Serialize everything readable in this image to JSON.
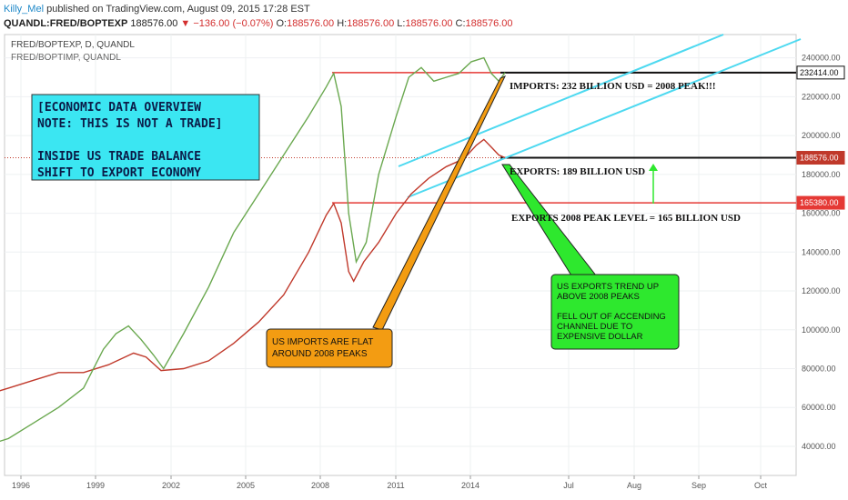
{
  "header": {
    "author": "Killy_Mel",
    "published": "published on TradingView.com, August 09, 2015 17:28 EST",
    "symbol": "QUANDL:FRED/BOPTEXP",
    "price": "188576.00",
    "change_arrow": "▼",
    "change": "−136.00 (−0.07%)",
    "o_label": "O:",
    "o_value": "188576.00",
    "h_label": "H:",
    "h_value": "188576.00",
    "l_label": "L:",
    "l_value": "188576.00",
    "c_label": "C:",
    "c_value": "188576.00"
  },
  "chart_data": {
    "type": "line",
    "legend_texts": [
      "FRED/BOPTEXP, D, QUANDL",
      "FRED/BOPTIMP, QUANDL"
    ],
    "y_ticks": [
      40000,
      60000,
      80000,
      100000,
      120000,
      140000,
      160000,
      180000,
      200000,
      220000,
      240000
    ],
    "y_tick_labels": [
      "40000.00",
      "60000.00",
      "80000.00",
      "100000.00",
      "120000.00",
      "140000.00",
      "160000.00",
      "180000.00",
      "200000.00",
      "220000.00",
      "240000.00"
    ],
    "ylim": [
      25000,
      252000
    ],
    "x_tick_labels": [
      "1996",
      "1999",
      "2002",
      "2005",
      "2008",
      "2011",
      "2014",
      "Jul",
      "Aug",
      "Sep",
      "Oct"
    ],
    "grid": true,
    "series": [
      {
        "color": "#c0392b",
        "points": [
          [
            1994.5,
            66000
          ],
          [
            1995.5,
            70000
          ],
          [
            1996.5,
            74000
          ],
          [
            1997.5,
            78000
          ],
          [
            1998.5,
            78000
          ],
          [
            1999.5,
            82000
          ],
          [
            2000.5,
            88000
          ],
          [
            2001,
            86000
          ],
          [
            2001.6,
            79000
          ],
          [
            2002.5,
            80000
          ],
          [
            2003.5,
            84000
          ],
          [
            2004.5,
            93000
          ],
          [
            2005.5,
            104000
          ],
          [
            2006.5,
            118000
          ],
          [
            2007.5,
            140000
          ],
          [
            2008.2,
            159000
          ],
          [
            2008.5,
            165000
          ],
          [
            2008.8,
            155000
          ],
          [
            2009.1,
            130000
          ],
          [
            2009.3,
            125000
          ],
          [
            2009.7,
            135000
          ],
          [
            2010.3,
            145000
          ],
          [
            2011,
            160000
          ],
          [
            2011.6,
            170000
          ],
          [
            2012.3,
            178000
          ],
          [
            2013,
            184000
          ],
          [
            2013.7,
            188000
          ],
          [
            2014.2,
            195000
          ],
          [
            2014.5,
            198000
          ],
          [
            2014.8,
            194000
          ],
          [
            2015.1,
            190000
          ],
          [
            2015.35,
            188576
          ]
        ]
      },
      {
        "color": "#6aa84f",
        "points": [
          [
            1994.5,
            40000
          ],
          [
            1995.5,
            44000
          ],
          [
            1996.5,
            52000
          ],
          [
            1997.5,
            60000
          ],
          [
            1998.5,
            70000
          ],
          [
            1999.3,
            90000
          ],
          [
            1999.8,
            98000
          ],
          [
            2000.3,
            102000
          ],
          [
            2000.8,
            95000
          ],
          [
            2001.3,
            87000
          ],
          [
            2001.7,
            80000
          ],
          [
            2002.5,
            98000
          ],
          [
            2003.5,
            122000
          ],
          [
            2004.5,
            150000
          ],
          [
            2005.5,
            170000
          ],
          [
            2006.5,
            190000
          ],
          [
            2007.5,
            210000
          ],
          [
            2008.2,
            225000
          ],
          [
            2008.5,
            232000
          ],
          [
            2008.8,
            215000
          ],
          [
            2009.1,
            160000
          ],
          [
            2009.4,
            135000
          ],
          [
            2009.8,
            145000
          ],
          [
            2010.3,
            180000
          ],
          [
            2011,
            210000
          ],
          [
            2011.5,
            230000
          ],
          [
            2012,
            235000
          ],
          [
            2012.5,
            228000
          ],
          [
            2013,
            230000
          ],
          [
            2013.5,
            232000
          ],
          [
            2014,
            238000
          ],
          [
            2014.5,
            240000
          ],
          [
            2014.8,
            232000
          ],
          [
            2015.1,
            228000
          ],
          [
            2015.35,
            232414
          ]
        ]
      }
    ],
    "levels": [
      {
        "value": 232414,
        "color": "#e53935",
        "label": "232414.00"
      },
      {
        "value": 188576,
        "color": "#c0392b",
        "label": "188576.00"
      },
      {
        "value": 165380,
        "color": "#e53935",
        "label": "165380.00"
      }
    ],
    "channel_color": "#4dd9f0",
    "annotations": {
      "info_box": {
        "lines": [
          "[ECONOMIC DATA OVERVIEW",
          "NOTE: THIS IS NOT A TRADE]",
          "",
          "INSIDE US TRADE BALANCE",
          "SHIFT TO EXPORT ECONOMY"
        ],
        "bg": "#3be6f2"
      },
      "imports_label": "IMPORTS: 232 BILLION USD = 2008 PEAK!!!",
      "exports_label": "EXPORTS: 189 BILLION USD",
      "exports_peak_label": "EXPORTS 2008 PEAK LEVEL = 165 BILLION USD",
      "orange_callout": {
        "lines": [
          "US IMPORTS ARE FLAT",
          "AROUND 2008 PEAKS"
        ],
        "bg": "#f39c12"
      },
      "green_callout": {
        "lines": [
          "US EXPORTS TREND UP",
          "ABOVE 2008 PEAKS",
          "",
          "FELL OUT OF ACCENDING",
          "CHANNEL DUE TO",
          "EXPENSIVE DOLLAR"
        ],
        "bg": "#2ee82e"
      }
    }
  }
}
